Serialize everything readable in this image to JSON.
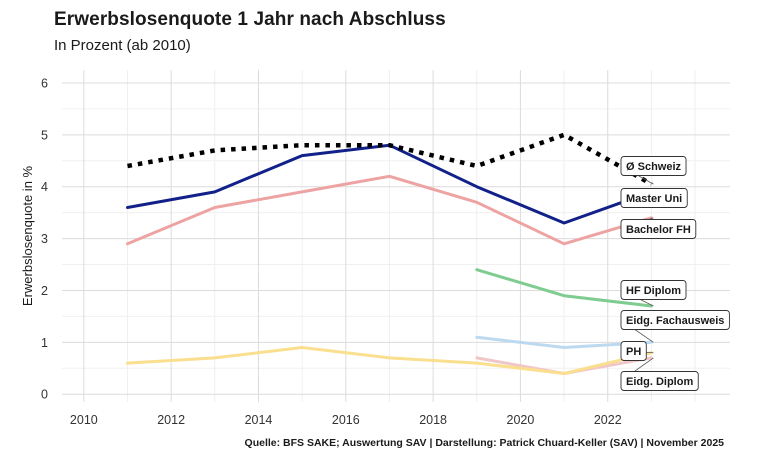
{
  "chart_data": {
    "type": "line",
    "title": "Erwerbslosenquote 1 Jahr nach Abschluss",
    "subtitle": "In Prozent (ab 2010)",
    "ylabel": "Erwerbslosenquote in %",
    "xlabel": "",
    "xlim": [
      2009.5,
      2024.8
    ],
    "ylim": [
      -0.15,
      6.25
    ],
    "x_ticks": [
      2010,
      2012,
      2014,
      2016,
      2018,
      2020,
      2022
    ],
    "y_ticks": [
      0,
      1,
      2,
      3,
      4,
      5,
      6
    ],
    "grid": true,
    "legend": "direct-labels-right",
    "source": "Quelle: BFS SAKE; Auswertung SAV | Darstellung: Patrick Chuard-Keller (SAV) | November 2025",
    "series": [
      {
        "name": "Ø Schweiz",
        "color": "#000000",
        "style": "dotted",
        "x": [
          2011,
          2013,
          2015,
          2017,
          2019,
          2021,
          2023
        ],
        "y": [
          4.4,
          4.7,
          4.8,
          4.8,
          4.4,
          5.0,
          4.05
        ]
      },
      {
        "name": "Master Uni",
        "color": "#12218a",
        "style": "solid",
        "x": [
          2011,
          2013,
          2015,
          2017,
          2019,
          2021,
          2023
        ],
        "y": [
          3.6,
          3.9,
          4.6,
          4.8,
          4.0,
          3.3,
          3.9
        ]
      },
      {
        "name": "Bachelor FH",
        "color": "#eea3a3",
        "style": "solid",
        "x": [
          2011,
          2013,
          2015,
          2017,
          2019,
          2021,
          2023
        ],
        "y": [
          2.9,
          3.6,
          3.9,
          4.2,
          3.7,
          2.9,
          3.4
        ]
      },
      {
        "name": "HF Diplom",
        "color": "#7fcc91",
        "style": "solid",
        "x": [
          2019,
          2021,
          2023
        ],
        "y": [
          2.4,
          1.9,
          1.7
        ]
      },
      {
        "name": "Eidg. Fachausweis",
        "color": "#bcd9ef",
        "style": "solid",
        "x": [
          2019,
          2021,
          2023
        ],
        "y": [
          1.1,
          0.9,
          1.0
        ]
      },
      {
        "name": "PH",
        "color": "#f9df8e",
        "style": "solid",
        "x": [
          2011,
          2013,
          2015,
          2017,
          2019,
          2021,
          2023
        ],
        "y": [
          0.6,
          0.7,
          0.9,
          0.7,
          0.6,
          0.4,
          0.8
        ]
      },
      {
        "name": "Eidg. Diplom",
        "color": "#f1c6c9",
        "style": "solid",
        "x": [
          2019,
          2021,
          2023
        ],
        "y": [
          0.7,
          0.4,
          0.7
        ]
      }
    ]
  }
}
